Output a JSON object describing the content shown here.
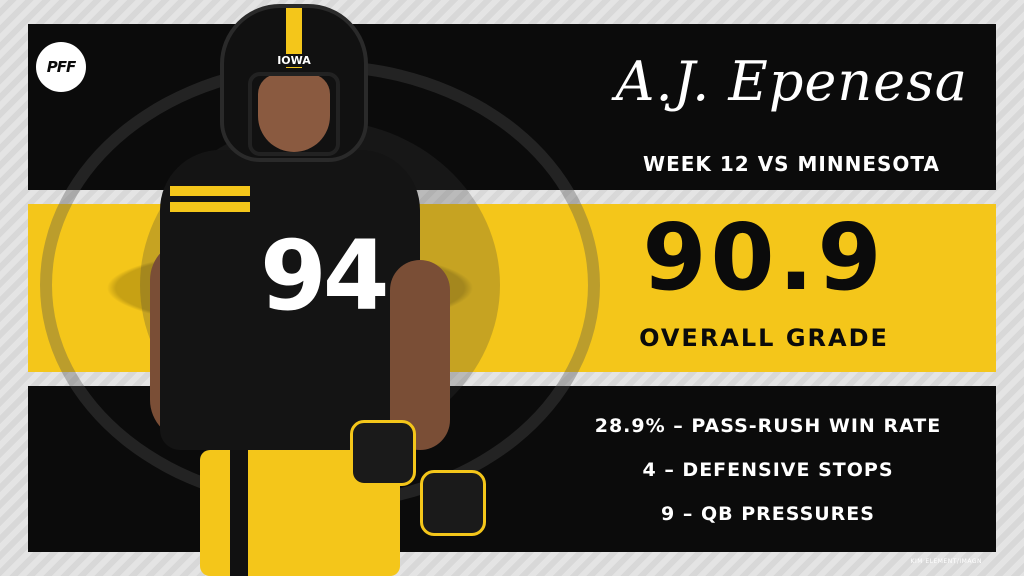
{
  "brand": {
    "logo_text": "PFF"
  },
  "player": {
    "name": "A.J. Epenesa",
    "helmet_text": "IOWA",
    "jersey_number": "94"
  },
  "game": {
    "week_text": "WEEK 12 VS MINNESOTA"
  },
  "grade": {
    "value": "90.9",
    "label": "OVERALL GRADE"
  },
  "stats": [
    "28.9% – PASS-RUSH WIN RATE",
    "4 – DEFENSIVE STOPS",
    "9 – QB PRESSURES"
  ],
  "photo_credit": "KIM ELEMENT/IMAGN",
  "colors": {
    "gold": "#f4c61a",
    "black": "#0b0b0b",
    "white": "#ffffff"
  }
}
